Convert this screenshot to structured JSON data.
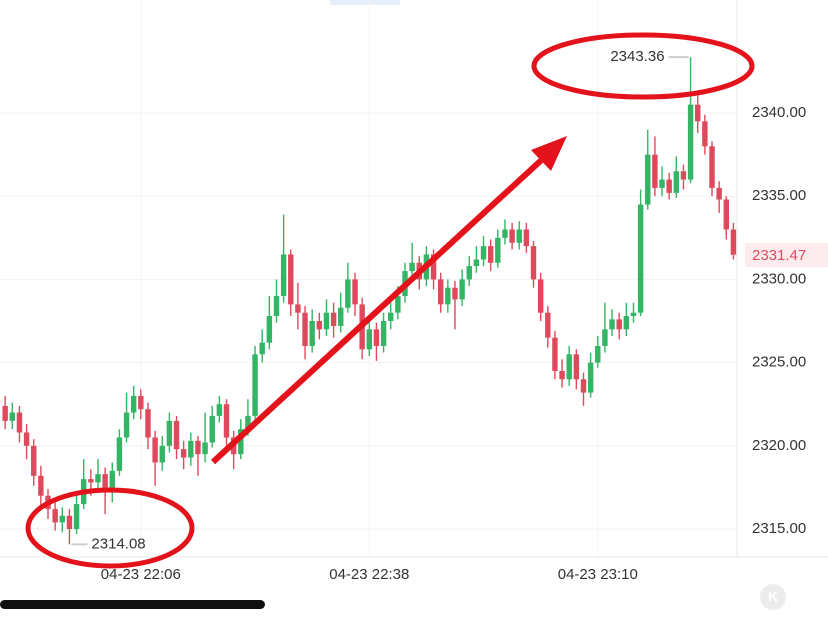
{
  "chart_data": {
    "type": "candlestick",
    "categories": [
      null,
      null,
      null,
      null,
      null,
      null,
      null,
      null,
      null,
      null,
      null,
      null,
      null,
      null,
      null,
      null,
      null,
      null,
      null,
      "04-23 22:06",
      null,
      null,
      null,
      null,
      null,
      null,
      null,
      null,
      null,
      null,
      null,
      null,
      null,
      null,
      null,
      null,
      null,
      null,
      null,
      null,
      null,
      null,
      null,
      null,
      null,
      null,
      null,
      null,
      null,
      null,
      null,
      "04-23 22:38",
      null,
      null,
      null,
      null,
      null,
      null,
      null,
      null,
      null,
      null,
      null,
      null,
      null,
      null,
      null,
      null,
      null,
      null,
      null,
      null,
      null,
      null,
      null,
      null,
      null,
      null,
      null,
      null,
      null,
      null,
      null,
      "04-23 23:10",
      null,
      null,
      null,
      null,
      null,
      null,
      null,
      null,
      null,
      null,
      null,
      null,
      null,
      null,
      null,
      null,
      null,
      null,
      null
    ],
    "open": [
      2322.4,
      2321.5,
      2322.0,
      2320.8,
      2320.0,
      2318.2,
      2317.0,
      2316.2,
      2315.4,
      2315.8,
      2315.0,
      2316.5,
      2318.0,
      2317.8,
      2318.3,
      2317.2,
      2318.5,
      2320.5,
      2322.0,
      2323.0,
      2322.2,
      2320.5,
      2319.0,
      2320.0,
      2321.5,
      2319.8,
      2319.3,
      2320.3,
      2319.5,
      2320.2,
      2321.8,
      2322.5,
      2320.5,
      2319.5,
      2321.0,
      2321.8,
      2325.5,
      2326.2,
      2327.8,
      2329.0,
      2331.5,
      2328.5,
      2328.0,
      2326.0,
      2327.5,
      2327.0,
      2328.0,
      2327.2,
      2328.3,
      2330.0,
      2328.5,
      2325.8,
      2327.0,
      2326.0,
      2327.5,
      2328.0,
      2329.0,
      2330.5,
      2331.0,
      2330.0,
      2331.5,
      2330.0,
      2328.5,
      2329.5,
      2328.8,
      2330.0,
      2330.8,
      2331.2,
      2332.0,
      2331.0,
      2332.5,
      2333.0,
      2332.2,
      2333.0,
      2332.0,
      2330.0,
      2328.0,
      2326.5,
      2324.5,
      2324.0,
      2325.5,
      2324.0,
      2323.2,
      2325.0,
      2326.0,
      2327.0,
      2327.6,
      2327.0,
      2327.8,
      2328.0,
      2334.5,
      2337.5,
      2335.5,
      2336.0,
      2335.2,
      2336.5,
      2336.0,
      2340.5,
      2339.5,
      2338.0,
      2335.5,
      2334.8,
      2333.0
    ],
    "high": [
      2323.0,
      2322.6,
      2322.4,
      2321.3,
      2320.4,
      2318.8,
      2317.4,
      2316.6,
      2316.3,
      2316.2,
      2317.0,
      2319.2,
      2318.6,
      2319.2,
      2318.7,
      2319.0,
      2321.0,
      2323.2,
      2323.6,
      2323.4,
      2322.6,
      2320.9,
      2320.6,
      2322.0,
      2321.8,
      2320.3,
      2320.8,
      2320.6,
      2322.0,
      2322.4,
      2323.0,
      2322.8,
      2320.9,
      2321.6,
      2322.8,
      2326.0,
      2327.0,
      2329.0,
      2330.0,
      2333.9,
      2331.8,
      2329.8,
      2328.4,
      2328.2,
      2328.0,
      2328.8,
      2328.6,
      2329.2,
      2331.0,
      2330.4,
      2328.9,
      2327.6,
      2327.4,
      2328.0,
      2328.6,
      2329.6,
      2331.0,
      2332.2,
      2331.4,
      2332.0,
      2331.8,
      2330.4,
      2330.0,
      2329.9,
      2330.6,
      2331.4,
      2332.0,
      2332.6,
      2332.4,
      2333.0,
      2333.6,
      2333.4,
      2333.5,
      2333.4,
      2332.3,
      2330.4,
      2328.4,
      2326.9,
      2325.2,
      2326.0,
      2325.8,
      2324.4,
      2325.6,
      2326.6,
      2328.6,
      2328.2,
      2328.0,
      2328.6,
      2328.6,
      2335.4,
      2339.0,
      2338.6,
      2336.8,
      2336.4,
      2337.4,
      2336.9,
      2343.36,
      2341.2,
      2339.9,
      2338.3,
      2335.9,
      2335.0,
      2333.4
    ],
    "low": [
      2321.0,
      2321.0,
      2320.2,
      2319.2,
      2317.6,
      2316.4,
      2315.6,
      2314.9,
      2314.8,
      2314.08,
      2314.7,
      2316.2,
      2317.0,
      2317.3,
      2315.9,
      2316.6,
      2318.2,
      2320.2,
      2321.6,
      2321.6,
      2319.8,
      2317.6,
      2318.5,
      2319.6,
      2319.2,
      2318.6,
      2318.8,
      2318.2,
      2319.0,
      2319.9,
      2321.4,
      2320.0,
      2318.6,
      2319.2,
      2320.6,
      2321.5,
      2325.0,
      2325.8,
      2327.4,
      2328.6,
      2327.8,
      2327.0,
      2325.2,
      2325.6,
      2326.4,
      2326.6,
      2326.5,
      2326.8,
      2328.0,
      2327.8,
      2325.2,
      2325.4,
      2325.1,
      2325.6,
      2327.0,
      2327.6,
      2328.6,
      2330.0,
      2329.4,
      2329.6,
      2329.4,
      2328.0,
      2328.0,
      2327.0,
      2328.4,
      2329.6,
      2330.4,
      2330.8,
      2330.5,
      2330.7,
      2332.1,
      2331.8,
      2331.8,
      2331.6,
      2329.5,
      2327.5,
      2325.9,
      2324.0,
      2323.5,
      2323.6,
      2323.4,
      2322.4,
      2322.9,
      2324.7,
      2325.6,
      2326.6,
      2326.4,
      2326.6,
      2327.4,
      2327.8,
      2334.2,
      2335.0,
      2335.0,
      2334.8,
      2334.9,
      2335.4,
      2335.8,
      2338.8,
      2337.5,
      2335.0,
      2334.0,
      2332.4,
      2331.2
    ],
    "close": [
      2321.5,
      2322.0,
      2320.8,
      2320.0,
      2318.2,
      2317.0,
      2316.2,
      2315.4,
      2315.8,
      2315.0,
      2316.5,
      2318.0,
      2317.8,
      2318.3,
      2317.2,
      2318.5,
      2320.5,
      2322.0,
      2323.0,
      2322.2,
      2320.5,
      2319.0,
      2320.0,
      2321.5,
      2319.8,
      2319.3,
      2320.3,
      2319.5,
      2320.2,
      2321.8,
      2322.5,
      2320.5,
      2319.5,
      2321.0,
      2321.8,
      2325.5,
      2326.2,
      2327.8,
      2329.0,
      2331.5,
      2328.5,
      2328.0,
      2326.0,
      2327.5,
      2327.0,
      2328.0,
      2327.2,
      2328.3,
      2330.0,
      2328.5,
      2325.8,
      2327.0,
      2326.0,
      2327.5,
      2328.0,
      2329.0,
      2330.5,
      2331.0,
      2330.0,
      2331.5,
      2330.0,
      2328.5,
      2329.5,
      2328.8,
      2330.0,
      2330.8,
      2331.2,
      2332.0,
      2331.0,
      2332.5,
      2333.0,
      2332.2,
      2333.0,
      2332.0,
      2330.0,
      2328.0,
      2326.5,
      2324.5,
      2324.0,
      2325.5,
      2324.0,
      2323.2,
      2325.0,
      2326.0,
      2327.0,
      2327.6,
      2327.0,
      2327.8,
      2328.0,
      2334.5,
      2337.5,
      2335.5,
      2336.0,
      2335.2,
      2336.5,
      2336.0,
      2340.5,
      2339.5,
      2338.0,
      2335.5,
      2334.8,
      2333.0,
      2331.47
    ],
    "up_color": "#34b565",
    "down_color": "#de4a5c",
    "ylim": [
      2313.44,
      2346.79
    ],
    "yticks": [
      {
        "value": 2315,
        "label": "2315.00"
      },
      {
        "value": 2320,
        "label": "2320.00"
      },
      {
        "value": 2325,
        "label": "2325.00"
      },
      {
        "value": 2330,
        "label": "2330.00"
      },
      {
        "value": 2335,
        "label": "2335.00"
      },
      {
        "value": 2340,
        "label": "2340.00"
      }
    ],
    "grid": true,
    "logo": "K"
  }
}
